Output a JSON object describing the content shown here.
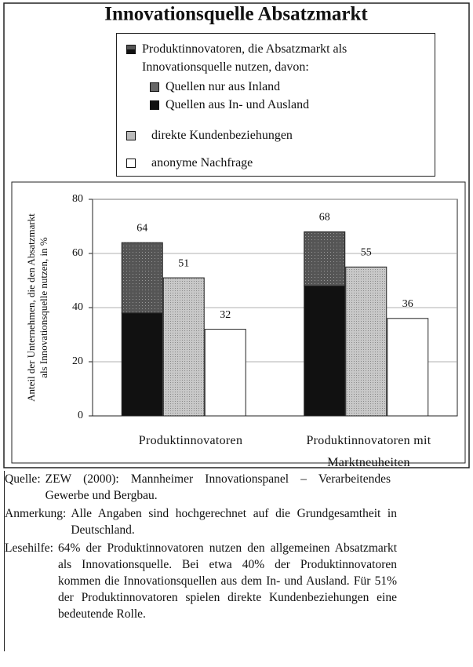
{
  "chart_data": {
    "type": "bar",
    "title": "Innovationsquelle Absatzmarkt",
    "ylabel": [
      "Anteil der Unternehmen, die den Absatzmarkt",
      "als Innovationsquelle nutzen, in %"
    ],
    "categories": [
      "Produktinnovatoren",
      "Produktinnovatoren mit Marktneuheiten"
    ],
    "series": [
      {
        "name": "Produktinnovatoren, die Absatzmarkt als Innovationsquelle nutzen, davon:",
        "values": [
          64,
          68
        ],
        "parts": [
          {
            "name": "Quellen nur aus Inland",
            "color": "#555555",
            "values": [
              26,
              20
            ]
          },
          {
            "name": "Quellen aus In- und Ausland",
            "color": "#111111",
            "values": [
              38,
              48
            ]
          }
        ]
      },
      {
        "name": "direkte Kundenbeziehungen",
        "color": "#b8b8b8",
        "values": [
          51,
          55
        ]
      },
      {
        "name": "anonyme Nachfrage",
        "color": "#ffffff",
        "values": [
          32,
          36
        ]
      }
    ],
    "ylim": [
      0,
      80
    ],
    "yticks": [
      0,
      20,
      40,
      60,
      80
    ],
    "grid": true
  },
  "notes": [
    {
      "label": "Quelle:",
      "text": "ZEW (2000): Mannheimer Innovationspanel – Verarbeitendes Gewerbe und Bergbau."
    },
    {
      "label": "Anmerkung:",
      "text": "Alle Angaben sind hochgerechnet auf die Grundgesamtheit in Deutschland."
    },
    {
      "label": "Lesehilfe:",
      "text": "64% der Produktinnovatoren nutzen den allgemeinen Absatzmarkt als Innovationsquelle. Bei etwa 40% der Produktinnovatoren kommen die Innovationsquellen aus dem In- und Ausland. Für 51% der Produktinnovatoren spielen direkte Kundenbeziehungen eine bedeutende Rolle."
    }
  ]
}
